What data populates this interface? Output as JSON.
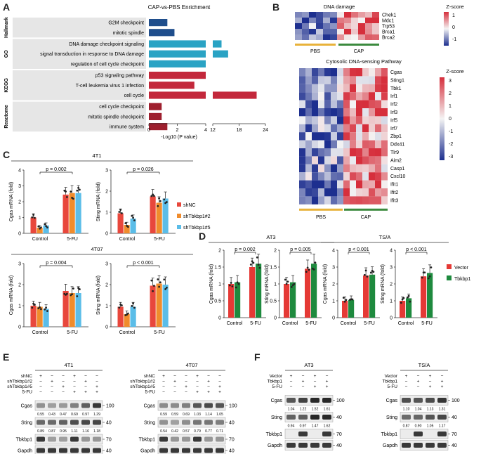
{
  "panel_letters": {
    "A": "A",
    "B": "B",
    "C": "C",
    "D": "D",
    "E": "E",
    "F": "F"
  },
  "colors": {
    "hallmark": "#1f4e8c",
    "go": "#2aa3c4",
    "kegg": "#c3283b",
    "reactome": "#9e1f2e",
    "shNC": "#e8473c",
    "shTbkbp1_2": "#f08c2c",
    "shTbkbp1_5": "#5bbde8",
    "vector": "#e53935",
    "tbkbp1": "#1e8a3e",
    "pbs": "#e8b23a",
    "cap": "#3b8a3e",
    "heat_low": "#1d2f8f",
    "heat_mid": "#f4f4f4",
    "heat_high": "#d62f3c"
  },
  "panelA": {
    "title": "CAP-vs-PBS Enrichment",
    "xlabel": "-Log10 (P value)",
    "groups": [
      "Hallmark",
      "GO",
      "KEGG",
      "Reactome"
    ],
    "ticks": [
      "0",
      "2",
      "4",
      "12",
      "18",
      "24"
    ]
  },
  "panelB": {
    "dna_title": "DNA damage",
    "dna_genes": [
      "Chek1",
      "Mdc1",
      "Trp53",
      "Brca1",
      "Brca2"
    ],
    "zscore_label": "Z-score",
    "dna_scale": [
      "1",
      "0",
      "-1"
    ],
    "groups": [
      "PBS",
      "CAP"
    ],
    "cyto_title": "Cytosolic DNA-sensing Pathway",
    "cyto_genes": [
      "Cgas",
      "Sting1",
      "Tbk1",
      "Irf1",
      "Irf2",
      "Irf3",
      "Irf5",
      "Irf7",
      "Zbp1",
      "Ddx41",
      "Tlr9",
      "Aim2",
      "Casp1",
      "Cxcl10",
      "Ifit1",
      "Ifit2",
      "Ifit3"
    ],
    "cyto_scale": [
      "3",
      "2",
      "1",
      "0",
      "-1",
      "-2",
      "-3"
    ]
  },
  "panelC": {
    "title_top": "4T1",
    "title_bottom": "4T07",
    "legend": [
      "shNC",
      "shTbkbp1#2",
      "shTbkbp1#5"
    ],
    "xcats": [
      "Control",
      "5-FU"
    ],
    "ylabels": [
      "Cgas mRNA (fold)",
      "Sting mRNA (fold)"
    ],
    "pvals": [
      "p = 0.002",
      "p = 0.026",
      "p = 0.004",
      "p < 0.001"
    ]
  },
  "panelD": {
    "title_left": "AT3",
    "title_right": "TS/A",
    "legend": [
      "Vector",
      "Tbkbp1"
    ],
    "xcats": [
      "Control",
      "5-FU"
    ],
    "ylabels": [
      "Cgas mRNA (fold)",
      "Sting mRNA (fold)"
    ],
    "pvals": [
      "p = 0.002",
      "p = 0.005",
      "p < 0.001",
      "p < 0.001"
    ]
  },
  "panelE": {
    "title_left": "4T1",
    "title_right": "4T07",
    "row_labels": [
      "shNC",
      "shTbkbp1#2",
      "shTbkbp1#5",
      "5-FU"
    ],
    "bands": [
      "Cgas",
      "Sting",
      "Tbkbp1",
      "Gapdh"
    ],
    "kda": [
      "100",
      "40",
      "70",
      "40"
    ],
    "left_cgas": [
      "0.55",
      "0.43",
      "0.47",
      "0.69",
      "0.97",
      "1.29"
    ],
    "left_sting": [
      "0.89",
      "0.87",
      "0.95",
      "1.11",
      "1.16",
      "1.18"
    ],
    "right_cgas": [
      "0.59",
      "0.59",
      "0.69",
      "1.03",
      "1.14",
      "1.05"
    ],
    "right_sting": [
      "0.54",
      "0.42",
      "0.57",
      "0.79",
      "0.77",
      "0.71"
    ]
  },
  "panelF": {
    "title_left": "AT3",
    "title_right": "TS/A",
    "row_labels": [
      "Vector",
      "Tbkbp1",
      "5-FU"
    ],
    "bands": [
      "Cgas",
      "Sting",
      "Tbkbp1",
      "Gapdh"
    ],
    "kda": [
      "100",
      "40",
      "70",
      "40"
    ],
    "left_cgas": [
      "1.04",
      "1.22",
      "1.52",
      "1.61"
    ],
    "left_sting": [
      "0.94",
      "0.97",
      "1.47",
      "1.62"
    ],
    "right_cgas": [
      "1.10",
      "1.04",
      "1.13",
      "1.31"
    ],
    "right_sting": [
      "0.87",
      "0.90",
      "1.05",
      "1.17"
    ]
  },
  "chart_data": [
    {
      "type": "bar",
      "orientation": "horizontal",
      "title": "CAP-vs-PBS Enrichment",
      "xlabel": "-Log10 (P value)",
      "categories": [
        "G2M checkpoint",
        "mitotic spindle",
        "DNA damage checkpoint signaling",
        "signal transduction in response to DNA damage",
        "regulation of cell cycle checkpoint",
        "p53 signaling pathway",
        "T-cell leukemia virus 1 infection",
        "cell cycle",
        "cell cycle checkpoint",
        "mitotic spindle checkpoint",
        "immune system"
      ],
      "groups": [
        "Hallmark",
        "Hallmark",
        "GO",
        "GO",
        "GO",
        "KEGG",
        "KEGG",
        "KEGG",
        "Reactome",
        "Reactome",
        "Reactome"
      ],
      "values": [
        1.3,
        1.8,
        14,
        15.5,
        11.5,
        11.5,
        3.2,
        22,
        0.9,
        0.9,
        1.3
      ],
      "xlim": [
        0,
        24
      ],
      "axis_break": [
        4,
        12
      ]
    },
    {
      "type": "bar",
      "title": "4T1 Cgas",
      "categories": [
        "Control",
        "5-FU"
      ],
      "series": [
        {
          "name": "shNC",
          "values": [
            1.0,
            2.45
          ]
        },
        {
          "name": "shTbkbp1#2",
          "values": [
            0.35,
            2.55
          ]
        },
        {
          "name": "shTbkbp1#5",
          "values": [
            0.5,
            2.55
          ]
        }
      ],
      "ylabel": "Cgas mRNA (fold)",
      "ylim": [
        0,
        4
      ],
      "annotation": "p = 0.002"
    },
    {
      "type": "bar",
      "title": "4T1 Sting",
      "categories": [
        "Control",
        "5-FU"
      ],
      "series": [
        {
          "name": "shNC",
          "values": [
            0.95,
            1.75
          ]
        },
        {
          "name": "shTbkbp1#2",
          "values": [
            0.4,
            1.45
          ]
        },
        {
          "name": "shTbkbp1#5",
          "values": [
            0.7,
            1.65
          ]
        }
      ],
      "ylabel": "Sting mRNA (fold)",
      "ylim": [
        0,
        3
      ],
      "annotation": "p = 0.026"
    },
    {
      "type": "bar",
      "title": "4T07 Cgas",
      "categories": [
        "Control",
        "5-FU"
      ],
      "series": [
        {
          "name": "shNC",
          "values": [
            1.0,
            1.7
          ]
        },
        {
          "name": "shTbkbp1#2",
          "values": [
            0.95,
            1.6
          ]
        },
        {
          "name": "shTbkbp1#5",
          "values": [
            0.85,
            1.6
          ]
        }
      ],
      "ylabel": "Cgas mRNA (fold)",
      "ylim": [
        0,
        3
      ],
      "annotation": "p = 0.004"
    },
    {
      "type": "bar",
      "title": "4T07 Sting",
      "categories": [
        "Control",
        "5-FU"
      ],
      "series": [
        {
          "name": "shNC",
          "values": [
            0.95,
            1.95
          ]
        },
        {
          "name": "shTbkbp1#2",
          "values": [
            0.6,
            2.05
          ]
        },
        {
          "name": "shTbkbp1#5",
          "values": [
            0.95,
            2.0
          ]
        }
      ],
      "ylabel": "Sting mRNA (fold)",
      "ylim": [
        0,
        3
      ],
      "annotation": "p < 0.001"
    },
    {
      "type": "bar",
      "title": "AT3 Cgas",
      "categories": [
        "Control",
        "5-FU"
      ],
      "series": [
        {
          "name": "Vector",
          "values": [
            1.0,
            1.5
          ]
        },
        {
          "name": "Tbkbp1",
          "values": [
            1.05,
            1.6
          ]
        }
      ],
      "ylabel": "Cgas mRNA (fold)",
      "ylim": [
        0,
        2
      ],
      "annotation": "p = 0.002"
    },
    {
      "type": "bar",
      "title": "AT3 Sting",
      "categories": [
        "Control",
        "5-FU"
      ],
      "series": [
        {
          "name": "Vector",
          "values": [
            1.0,
            1.45
          ]
        },
        {
          "name": "Tbkbp1",
          "values": [
            1.05,
            1.6
          ]
        }
      ],
      "ylabel": "Sting mRNA (fold)",
      "ylim": [
        0,
        2
      ],
      "annotation": "p = 0.005"
    },
    {
      "type": "bar",
      "title": "TS/A Cgas",
      "categories": [
        "Control",
        "5-FU"
      ],
      "series": [
        {
          "name": "Vector",
          "values": [
            1.0,
            2.5
          ]
        },
        {
          "name": "Tbkbp1",
          "values": [
            1.05,
            2.55
          ]
        }
      ],
      "ylabel": "Cgas mRNA (fold)",
      "ylim": [
        0,
        4
      ],
      "annotation": "p < 0.001"
    },
    {
      "type": "bar",
      "title": "TS/A Sting",
      "categories": [
        "Control",
        "5-FU"
      ],
      "series": [
        {
          "name": "Vector",
          "values": [
            1.0,
            2.45
          ]
        },
        {
          "name": "Tbkbp1",
          "values": [
            1.15,
            2.65
          ]
        }
      ],
      "ylabel": "Sting mRNA (fold)",
      "ylim": [
        0,
        4
      ],
      "annotation": "p < 0.001"
    }
  ]
}
